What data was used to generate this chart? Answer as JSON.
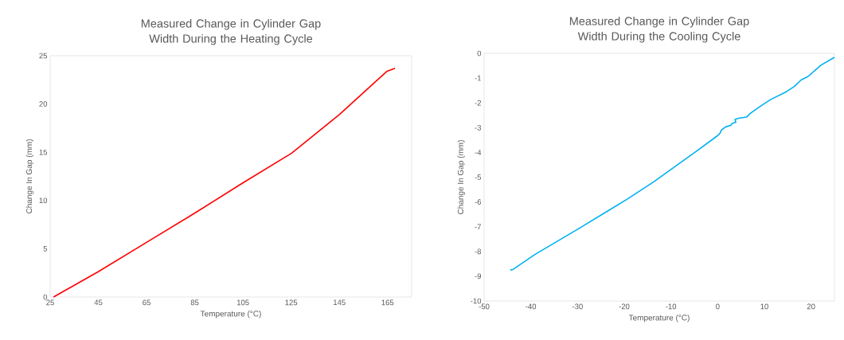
{
  "chart_data": [
    {
      "type": "line",
      "title": "Measured Change in Cylinder Gap Width During the Heating Cycle",
      "xlabel": "Temperature (°C)",
      "ylabel": "Change In Gap (mm)",
      "color": "#ff0000",
      "x": [
        26.4,
        44.8,
        64.6,
        84.4,
        104.8,
        125.2,
        145,
        158.2,
        164.8,
        168.1
      ],
      "values": [
        0,
        2.6,
        5.6,
        8.6,
        11.8,
        14.9,
        18.9,
        21.9,
        23.4,
        23.7
      ],
      "xlim": [
        25,
        175
      ],
      "xticks": [
        25,
        45,
        65,
        85,
        105,
        125,
        145,
        165
      ],
      "ylim": [
        0,
        25
      ],
      "yticks": [
        0,
        5,
        10,
        15,
        20,
        25
      ]
    },
    {
      "type": "line",
      "title": "Measured Change in Cylinder Gap Width During the Cooling Cycle",
      "xlabel": "Temperature (°C)",
      "ylabel": "Change In Gap (mm)",
      "color": "#00b0f0",
      "x": [
        -44.4,
        -43.75,
        -39.2,
        -29.6,
        -19.3,
        -13.7,
        -4.6,
        0,
        0.5,
        0.8,
        1.7,
        2.8,
        3.1,
        3.9,
        3.7,
        4.5,
        6.2,
        7.1,
        9.1,
        11.3,
        14.7,
        16.4,
        17.9,
        19.3,
        22.1,
        25
      ],
      "values": [
        -8.75,
        -8.72,
        -8.13,
        -7.06,
        -5.88,
        -5.19,
        -3.96,
        -3.32,
        -3.23,
        -3.1,
        -2.97,
        -2.91,
        -2.83,
        -2.78,
        -2.67,
        -2.62,
        -2.57,
        -2.41,
        -2.14,
        -1.87,
        -1.55,
        -1.34,
        -1.07,
        -0.94,
        -0.48,
        -0.16
      ],
      "xlim": [
        -50,
        25
      ],
      "xticks": [
        -50,
        -40,
        -30,
        -20,
        -10,
        0,
        10,
        20
      ],
      "ylim": [
        -10,
        0
      ],
      "yticks": [
        -10,
        -9,
        -8,
        -7,
        -6,
        -5,
        -4,
        -3,
        -2,
        -1,
        0
      ]
    }
  ]
}
